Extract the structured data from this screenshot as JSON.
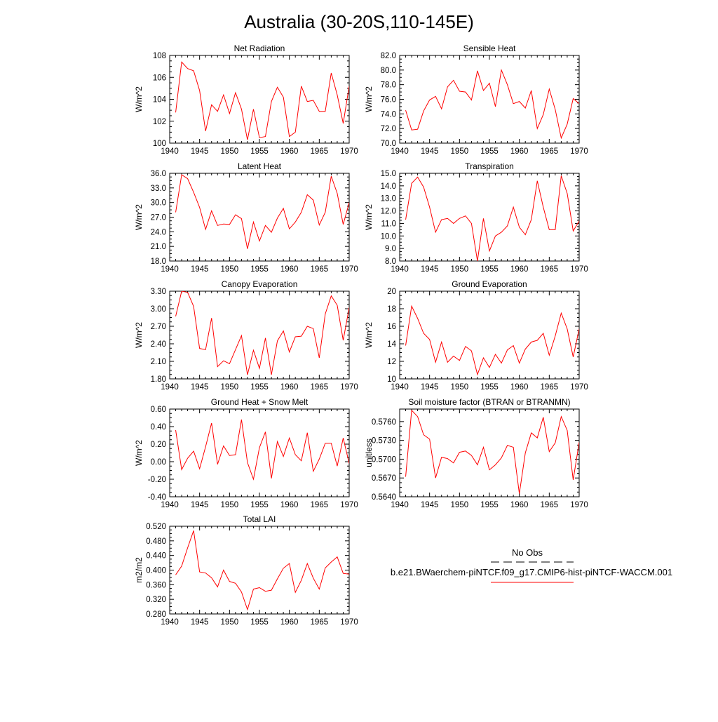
{
  "page": {
    "title": "Australia (30-20S,110-145E)"
  },
  "legend": {
    "obs_label": "No Obs",
    "obs_color": "#000000",
    "case_label": "b.e21.BWaerchem-piNTCF.f09_g17.CMIP6-hist-piNTCF-WACCM.001",
    "case_color": "#ff0000"
  },
  "chart_data": [
    {
      "type": "line",
      "title": "Net Radiation",
      "xlabel": "",
      "ylabel": "W/m^2",
      "xlim": [
        1940,
        1970
      ],
      "ylim": [
        100,
        108
      ],
      "xticks": [
        1940,
        1945,
        1950,
        1955,
        1960,
        1965,
        1970
      ],
      "xtick_labels": [
        "1940",
        "1945",
        "1950",
        "1955",
        "1960",
        "1965",
        "1970"
      ],
      "yticks": [
        100,
        102,
        104,
        106,
        108
      ],
      "ytick_labels": [
        "100",
        "102",
        "104",
        "106",
        "108"
      ],
      "grid": false,
      "x": [
        1941,
        1942,
        1943,
        1944,
        1945,
        1946,
        1947,
        1948,
        1949,
        1950,
        1951,
        1952,
        1953,
        1954,
        1955,
        1956,
        1957,
        1958,
        1959,
        1960,
        1961,
        1962,
        1963,
        1964,
        1965,
        1966,
        1967,
        1968,
        1969,
        1970
      ],
      "series": [
        {
          "color": "#ff0000",
          "values": [
            102.8,
            107.4,
            106.8,
            106.6,
            104.8,
            101.1,
            103.5,
            102.9,
            104.4,
            102.7,
            104.6,
            103.1,
            100.3,
            103.1,
            100.5,
            100.6,
            103.8,
            105.1,
            104.2,
            100.6,
            101.0,
            105.2,
            103.8,
            103.9,
            102.9,
            102.9,
            106.4,
            104.4,
            101.8,
            105.2
          ]
        }
      ]
    },
    {
      "type": "line",
      "title": "Sensible Heat",
      "xlabel": "",
      "ylabel": "W/m^2",
      "xlim": [
        1940,
        1970
      ],
      "ylim": [
        70,
        82
      ],
      "xticks": [
        1940,
        1945,
        1950,
        1955,
        1960,
        1965,
        1970
      ],
      "xtick_labels": [
        "1940",
        "1945",
        "1950",
        "1955",
        "1960",
        "1965",
        "1970"
      ],
      "yticks": [
        70,
        72,
        74,
        76,
        78,
        80,
        82
      ],
      "ytick_labels": [
        "70.0",
        "72.0",
        "74.0",
        "76.0",
        "78.0",
        "80.0",
        "82.0"
      ],
      "grid": false,
      "x": [
        1941,
        1942,
        1943,
        1944,
        1945,
        1946,
        1947,
        1948,
        1949,
        1950,
        1951,
        1952,
        1953,
        1954,
        1955,
        1956,
        1957,
        1958,
        1959,
        1960,
        1961,
        1962,
        1963,
        1964,
        1965,
        1966,
        1967,
        1968,
        1969,
        1970
      ],
      "series": [
        {
          "color": "#ff0000",
          "values": [
            74.5,
            71.8,
            71.9,
            74.4,
            75.9,
            76.4,
            74.7,
            77.7,
            78.6,
            77.1,
            77.0,
            75.9,
            79.9,
            77.2,
            78.2,
            75.0,
            80.0,
            78.0,
            75.4,
            75.7,
            74.8,
            77.2,
            72.0,
            73.9,
            77.4,
            74.6,
            70.7,
            72.6,
            76.1,
            75.4
          ]
        }
      ]
    },
    {
      "type": "line",
      "title": "Latent Heat",
      "xlabel": "",
      "ylabel": "W/m^2",
      "xlim": [
        1940,
        1970
      ],
      "ylim": [
        18,
        36
      ],
      "xticks": [
        1940,
        1945,
        1950,
        1955,
        1960,
        1965,
        1970
      ],
      "xtick_labels": [
        "1940",
        "1945",
        "1950",
        "1955",
        "1960",
        "1965",
        "1970"
      ],
      "yticks": [
        18,
        21,
        24,
        27,
        30,
        33,
        36
      ],
      "ytick_labels": [
        "18.0",
        "21.0",
        "24.0",
        "27.0",
        "30.0",
        "33.0",
        "36.0"
      ],
      "grid": false,
      "x": [
        1941,
        1942,
        1943,
        1944,
        1945,
        1946,
        1947,
        1948,
        1949,
        1950,
        1951,
        1952,
        1953,
        1954,
        1955,
        1956,
        1957,
        1958,
        1959,
        1960,
        1961,
        1962,
        1963,
        1964,
        1965,
        1966,
        1967,
        1968,
        1969,
        1970
      ],
      "series": [
        {
          "color": "#ff0000",
          "values": [
            28.0,
            35.7,
            34.9,
            32.1,
            29.0,
            24.5,
            28.3,
            25.3,
            25.6,
            25.5,
            27.5,
            26.7,
            20.5,
            26.0,
            22.1,
            25.3,
            23.9,
            26.8,
            28.8,
            24.6,
            26.0,
            28.0,
            31.6,
            30.5,
            25.4,
            28.0,
            35.4,
            31.9,
            25.5,
            30.0
          ]
        }
      ]
    },
    {
      "type": "line",
      "title": "Transpiration",
      "xlabel": "",
      "ylabel": "W/m^2",
      "xlim": [
        1940,
        1970
      ],
      "ylim": [
        8,
        15
      ],
      "xticks": [
        1940,
        1945,
        1950,
        1955,
        1960,
        1965,
        1970
      ],
      "xtick_labels": [
        "1940",
        "1945",
        "1950",
        "1955",
        "1960",
        "1965",
        "1970"
      ],
      "yticks": [
        8,
        9,
        10,
        11,
        12,
        13,
        14,
        15
      ],
      "ytick_labels": [
        "8.0",
        "9.0",
        "10.0",
        "11.0",
        "12.0",
        "13.0",
        "14.0",
        "15.0"
      ],
      "grid": false,
      "x": [
        1941,
        1942,
        1943,
        1944,
        1945,
        1946,
        1947,
        1948,
        1949,
        1950,
        1951,
        1952,
        1953,
        1954,
        1955,
        1956,
        1957,
        1958,
        1959,
        1960,
        1961,
        1962,
        1963,
        1964,
        1965,
        1966,
        1967,
        1968,
        1969,
        1970
      ],
      "series": [
        {
          "color": "#ff0000",
          "values": [
            11.3,
            14.2,
            14.7,
            13.9,
            12.3,
            10.3,
            11.3,
            11.4,
            11.0,
            11.4,
            11.6,
            11.0,
            8.0,
            11.4,
            8.8,
            10.0,
            10.3,
            10.8,
            12.3,
            10.7,
            10.1,
            11.3,
            14.4,
            12.3,
            10.5,
            10.5,
            14.8,
            13.4,
            10.4,
            11.2
          ]
        }
      ]
    },
    {
      "type": "line",
      "title": "Canopy Evaporation",
      "xlabel": "",
      "ylabel": "W/m^2",
      "xlim": [
        1940,
        1970
      ],
      "ylim": [
        1.8,
        3.3
      ],
      "xticks": [
        1940,
        1945,
        1950,
        1955,
        1960,
        1965,
        1970
      ],
      "xtick_labels": [
        "1940",
        "1945",
        "1950",
        "1955",
        "1960",
        "1965",
        "1970"
      ],
      "yticks": [
        1.8,
        2.1,
        2.4,
        2.7,
        3.0,
        3.3
      ],
      "ytick_labels": [
        "1.80",
        "2.10",
        "2.40",
        "2.70",
        "3.00",
        "3.30"
      ],
      "grid": false,
      "x": [
        1941,
        1942,
        1943,
        1944,
        1945,
        1946,
        1947,
        1948,
        1949,
        1950,
        1951,
        1952,
        1953,
        1954,
        1955,
        1956,
        1957,
        1958,
        1959,
        1960,
        1961,
        1962,
        1963,
        1964,
        1965,
        1966,
        1967,
        1968,
        1969,
        1970
      ],
      "series": [
        {
          "color": "#ff0000",
          "values": [
            2.87,
            3.3,
            3.28,
            3.04,
            2.32,
            2.3,
            2.84,
            2.01,
            2.11,
            2.06,
            2.3,
            2.54,
            1.87,
            2.29,
            1.98,
            2.5,
            1.87,
            2.45,
            2.62,
            2.26,
            2.52,
            2.53,
            2.7,
            2.66,
            2.16,
            2.91,
            3.22,
            3.06,
            2.46,
            3.02
          ]
        }
      ]
    },
    {
      "type": "line",
      "title": "Ground Evaporation",
      "xlabel": "",
      "ylabel": "W/m^2",
      "xlim": [
        1940,
        1970
      ],
      "ylim": [
        10,
        20
      ],
      "xticks": [
        1940,
        1945,
        1950,
        1955,
        1960,
        1965,
        1970
      ],
      "xtick_labels": [
        "1940",
        "1945",
        "1950",
        "1955",
        "1960",
        "1965",
        "1970"
      ],
      "yticks": [
        10,
        12,
        14,
        16,
        18,
        20
      ],
      "ytick_labels": [
        "10",
        "12",
        "14",
        "16",
        "18",
        "20"
      ],
      "grid": false,
      "x": [
        1941,
        1942,
        1943,
        1944,
        1945,
        1946,
        1947,
        1948,
        1949,
        1950,
        1951,
        1952,
        1953,
        1954,
        1955,
        1956,
        1957,
        1958,
        1959,
        1960,
        1961,
        1962,
        1963,
        1964,
        1965,
        1966,
        1967,
        1968,
        1969,
        1970
      ],
      "series": [
        {
          "color": "#ff0000",
          "values": [
            13.8,
            18.3,
            16.9,
            15.2,
            14.5,
            11.9,
            14.2,
            11.9,
            12.6,
            12.1,
            13.7,
            13.2,
            10.5,
            12.4,
            11.3,
            12.8,
            11.8,
            13.3,
            13.8,
            11.8,
            13.4,
            14.2,
            14.4,
            15.2,
            12.7,
            14.9,
            17.5,
            15.7,
            12.5,
            15.7
          ]
        }
      ]
    },
    {
      "type": "line",
      "title": "Ground Heat + Snow Melt",
      "xlabel": "",
      "ylabel": "W/m^2",
      "xlim": [
        1940,
        1970
      ],
      "ylim": [
        -0.4,
        0.6
      ],
      "xticks": [
        1940,
        1945,
        1950,
        1955,
        1960,
        1965,
        1970
      ],
      "xtick_labels": [
        "1940",
        "1945",
        "1950",
        "1955",
        "1960",
        "1965",
        "1970"
      ],
      "yticks": [
        -0.4,
        -0.2,
        0.0,
        0.2,
        0.4,
        0.6
      ],
      "ytick_labels": [
        "-0.40",
        "-0.20",
        "0.00",
        "0.20",
        "0.40",
        "0.60"
      ],
      "grid": false,
      "x": [
        1941,
        1942,
        1943,
        1944,
        1945,
        1946,
        1947,
        1948,
        1949,
        1950,
        1951,
        1952,
        1953,
        1954,
        1955,
        1956,
        1957,
        1958,
        1959,
        1960,
        1961,
        1962,
        1963,
        1964,
        1965,
        1966,
        1967,
        1968,
        1969,
        1970
      ],
      "series": [
        {
          "color": "#ff0000",
          "values": [
            0.36,
            -0.09,
            0.04,
            0.12,
            -0.08,
            0.17,
            0.44,
            -0.03,
            0.18,
            0.07,
            0.08,
            0.48,
            -0.01,
            -0.2,
            0.16,
            0.34,
            -0.19,
            0.23,
            0.06,
            0.27,
            0.08,
            0.01,
            0.33,
            -0.11,
            0.03,
            0.21,
            0.21,
            -0.05,
            0.27,
            -0.02
          ]
        }
      ]
    },
    {
      "type": "line",
      "title": "Soil moisture factor (BTRAN or BTRANMN)",
      "xlabel": "",
      "ylabel": "unitless",
      "xlim": [
        1940,
        1970
      ],
      "ylim": [
        0.564,
        0.578
      ],
      "xticks": [
        1940,
        1945,
        1950,
        1955,
        1960,
        1965,
        1970
      ],
      "xtick_labels": [
        "1940",
        "1945",
        "1950",
        "1955",
        "1960",
        "1965",
        "1970"
      ],
      "yticks": [
        0.564,
        0.567,
        0.57,
        0.573,
        0.576
      ],
      "ytick_labels": [
        "0.5640",
        "0.5670",
        "0.5700",
        "0.5730",
        "0.5760"
      ],
      "grid": false,
      "x": [
        1941,
        1942,
        1943,
        1944,
        1945,
        1946,
        1947,
        1948,
        1949,
        1950,
        1951,
        1952,
        1953,
        1954,
        1955,
        1956,
        1957,
        1958,
        1959,
        1960,
        1961,
        1962,
        1963,
        1964,
        1965,
        1966,
        1967,
        1968,
        1969,
        1970
      ],
      "series": [
        {
          "color": "#ff0000",
          "values": [
            0.5672,
            0.5778,
            0.5768,
            0.5739,
            0.5732,
            0.567,
            0.5703,
            0.5701,
            0.5694,
            0.5711,
            0.5713,
            0.5706,
            0.5691,
            0.5719,
            0.5683,
            0.5691,
            0.5702,
            0.5722,
            0.5719,
            0.5645,
            0.571,
            0.5742,
            0.5734,
            0.5767,
            0.5712,
            0.5726,
            0.5768,
            0.5746,
            0.5667,
            0.5727
          ]
        }
      ]
    },
    {
      "type": "line",
      "title": "Total LAI",
      "xlabel": "",
      "ylabel": "m2/m2",
      "xlim": [
        1940,
        1970
      ],
      "ylim": [
        0.28,
        0.52
      ],
      "xticks": [
        1940,
        1945,
        1950,
        1955,
        1960,
        1965,
        1970
      ],
      "xtick_labels": [
        "1940",
        "1945",
        "1950",
        "1955",
        "1960",
        "1965",
        "1970"
      ],
      "yticks": [
        0.28,
        0.32,
        0.36,
        0.4,
        0.44,
        0.48,
        0.52
      ],
      "ytick_labels": [
        "0.280",
        "0.320",
        "0.360",
        "0.400",
        "0.440",
        "0.480",
        "0.520"
      ],
      "grid": false,
      "x": [
        1941,
        1942,
        1943,
        1944,
        1945,
        1946,
        1947,
        1948,
        1949,
        1950,
        1951,
        1952,
        1953,
        1954,
        1955,
        1956,
        1957,
        1958,
        1959,
        1960,
        1961,
        1962,
        1963,
        1964,
        1965,
        1966,
        1967,
        1968,
        1969,
        1970
      ],
      "series": [
        {
          "color": "#ff0000",
          "values": [
            0.387,
            0.411,
            0.461,
            0.508,
            0.395,
            0.392,
            0.379,
            0.354,
            0.4,
            0.369,
            0.364,
            0.34,
            0.292,
            0.348,
            0.352,
            0.342,
            0.345,
            0.376,
            0.405,
            0.418,
            0.339,
            0.372,
            0.418,
            0.378,
            0.348,
            0.406,
            0.422,
            0.436,
            0.391,
            0.389
          ]
        }
      ]
    }
  ]
}
